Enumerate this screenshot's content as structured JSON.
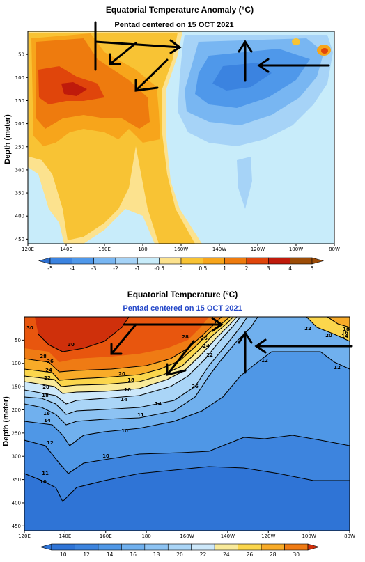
{
  "chart_data": [
    {
      "type": "heatmap",
      "title": "Equatorial Temperature Anomaly (°C)",
      "subtitle": "Pentad centered on 15 OCT 2021",
      "ylabel": "Depth (meter)",
      "xlabel": "",
      "x_ticks": [
        "120E",
        "140E",
        "160E",
        "180",
        "160W",
        "140W",
        "120W",
        "100W",
        "80W"
      ],
      "y_ticks": [
        "50",
        "100",
        "150",
        "200",
        "250",
        "300",
        "350",
        "400",
        "450"
      ],
      "xlim": [
        120,
        280
      ],
      "ylim": [
        460,
        0
      ],
      "colorbar_levels": [
        -5,
        -4,
        -3,
        -2,
        -1,
        -0.5,
        0,
        0.5,
        1,
        2,
        3,
        4,
        5
      ],
      "colorbar_labels": [
        "-5",
        "-4",
        "-3",
        "-2",
        "-1",
        "-0.5",
        "0",
        "0.5",
        "1",
        "2",
        "3",
        "4",
        "5"
      ],
      "colors": [
        "#2d6fd1",
        "#3b83e0",
        "#4f98ea",
        "#78b6f2",
        "#a6d3f7",
        "#c8ecfa",
        "#fce28e",
        "#f8c334",
        "#f7a51b",
        "#ee7b0e",
        "#e0450b",
        "#bf1a0b",
        "#9c4c07"
      ],
      "grid": false
    },
    {
      "type": "heatmap",
      "title": "Equatorial Temperature (°C)",
      "subtitle": "Pentad centered on 15 OCT 2021",
      "ylabel": "Depth (meter)",
      "xlabel": "",
      "x_ticks": [
        "120E",
        "140E",
        "160E",
        "180",
        "160W",
        "140W",
        "120W",
        "100W",
        "80W"
      ],
      "y_ticks": [
        "50",
        "100",
        "150",
        "200",
        "250",
        "300",
        "350",
        "400",
        "450"
      ],
      "xlim": [
        120,
        280
      ],
      "ylim": [
        460,
        0
      ],
      "colorbar_levels": [
        10,
        12,
        14,
        16,
        18,
        20,
        22,
        24,
        26,
        28,
        30
      ],
      "colorbar_labels": [
        "10",
        "12",
        "14",
        "16",
        "18",
        "20",
        "22",
        "24",
        "26",
        "28",
        "30"
      ],
      "contour_labels": [
        "30",
        "30",
        "28",
        "26",
        "24",
        "22",
        "20",
        "18",
        "16",
        "14",
        "12",
        "11",
        "10",
        "28",
        "26",
        "24",
        "22",
        "20",
        "18",
        "16",
        "14",
        "14",
        "11",
        "10",
        "26",
        "22",
        "20",
        "18",
        "16",
        "14",
        "12",
        "12",
        "10"
      ],
      "grid": false
    }
  ]
}
